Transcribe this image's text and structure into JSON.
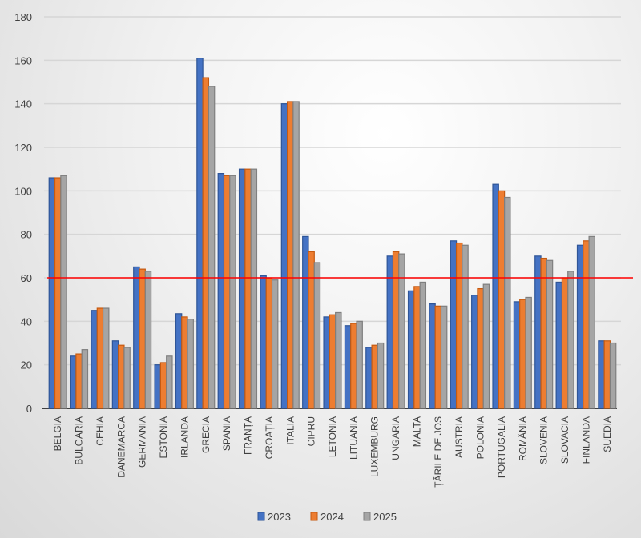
{
  "chart_data": {
    "type": "bar",
    "title": "",
    "xlabel": "",
    "ylabel": "",
    "ylim": [
      0,
      180
    ],
    "yticks": [
      0,
      20,
      40,
      60,
      80,
      100,
      120,
      140,
      160,
      180
    ],
    "grid": true,
    "legend_position": "bottom",
    "categories": [
      "BELGIA",
      "BULGARIA",
      "CEHIA",
      "DANEMARCA",
      "GERMANIA",
      "ESTONIA",
      "IRLANDA",
      "GRECIA",
      "SPANIA",
      "FRANȚA",
      "CROAȚIA",
      "ITALIA",
      "CIPRU",
      "LETONIA",
      "LITUANIA",
      "LUXEMBURG",
      "UNGARIA",
      "MALTA",
      "ȚĂRILE DE JOS",
      "AUSTRIA",
      "POLONIA",
      "PORTUGALIA",
      "ROMÂNIA",
      "SLOVENIA",
      "SLOVACIA",
      "FINLANDA",
      "SUEDIA"
    ],
    "series": [
      {
        "name": "2023",
        "color": "#4472c4",
        "values": [
          106,
          24,
          45,
          31,
          65,
          20,
          43.5,
          161,
          108,
          110,
          61,
          140,
          79,
          42,
          38,
          28,
          70,
          54,
          48,
          77,
          52,
          103,
          49,
          70,
          58,
          75,
          31
        ]
      },
      {
        "name": "2024",
        "color": "#ed7d31",
        "values": [
          106,
          25,
          46,
          29,
          64,
          21,
          42,
          152,
          107,
          110,
          60,
          141,
          72,
          43,
          39,
          29,
          72,
          56,
          47,
          76,
          55,
          100,
          50,
          69,
          60,
          77,
          31
        ]
      },
      {
        "name": "2025",
        "color": "#a5a5a5",
        "values": [
          107,
          27,
          46,
          28,
          63,
          24,
          41,
          148,
          107,
          110,
          59,
          141,
          67,
          44,
          40,
          30,
          71,
          58,
          47,
          75,
          57,
          97,
          51,
          68,
          63,
          79,
          30
        ]
      }
    ],
    "reference_line": {
      "value": 60,
      "color": "#ff0000"
    }
  }
}
